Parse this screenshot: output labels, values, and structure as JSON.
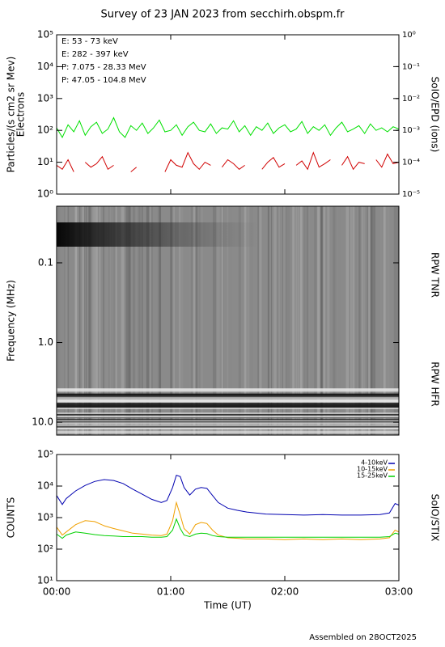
{
  "title": "Survey of 23 JAN 2023 from secchirh.obspm.fr",
  "footer": "Assembled on 28OCT2025",
  "chart_data": [
    {
      "type": "line",
      "ylabel": "Particles/(s cm2 sr Mev)",
      "sublabel": "Electrons",
      "y2label": "SoIO/EPD (ions)",
      "ylog": true,
      "ylim": [
        1,
        100000
      ],
      "yticks": [
        {
          "value": 1,
          "label": "10⁰"
        },
        {
          "value": 10,
          "label": "10¹"
        },
        {
          "value": 100,
          "label": "10²"
        },
        {
          "value": 1000,
          "label": "10³"
        },
        {
          "value": 10000,
          "label": "10⁴"
        },
        {
          "value": 100000,
          "label": "10⁵"
        }
      ],
      "y2lim": [
        1e-05,
        1
      ],
      "y2ticks": [
        {
          "value": 1e-05,
          "label": "10⁻⁵"
        },
        {
          "value": 0.0001,
          "label": "10⁻⁴"
        },
        {
          "value": 0.001,
          "label": "10⁻³"
        },
        {
          "value": 0.01,
          "label": "10⁻²"
        },
        {
          "value": 0.1,
          "label": "10⁻¹"
        },
        {
          "value": 1,
          "label": "10⁰"
        }
      ],
      "xlim": [
        0,
        180
      ],
      "x": [
        0,
        3,
        6,
        9,
        12,
        15,
        18,
        21,
        24,
        27,
        30,
        33,
        36,
        39,
        42,
        45,
        48,
        51,
        54,
        57,
        60,
        63,
        66,
        69,
        72,
        75,
        78,
        81,
        84,
        87,
        90,
        93,
        96,
        99,
        102,
        105,
        108,
        111,
        114,
        117,
        120,
        123,
        126,
        129,
        132,
        135,
        138,
        141,
        144,
        147,
        150,
        153,
        156,
        159,
        162,
        165,
        168,
        171,
        174,
        177,
        180
      ],
      "series": [
        {
          "name": "E: 53 - 73 keV",
          "color": "#00e000",
          "values": [
            120,
            60,
            150,
            90,
            200,
            70,
            130,
            180,
            80,
            110,
            250,
            90,
            60,
            140,
            100,
            170,
            80,
            120,
            210,
            90,
            100,
            150,
            70,
            130,
            180,
            100,
            90,
            160,
            80,
            120,
            110,
            200,
            90,
            140,
            70,
            130,
            100,
            170,
            80,
            120,
            150,
            90,
            110,
            190,
            80,
            130,
            100,
            150,
            70,
            120,
            180,
            90,
            110,
            140,
            80,
            160,
            100,
            120,
            90,
            130,
            110
          ]
        },
        {
          "name": "E: 282 - 397 keV",
          "color": "#d00000",
          "values": [
            8,
            6,
            12,
            5,
            null,
            10,
            7,
            9,
            15,
            6,
            8,
            null,
            null,
            5,
            7,
            null,
            6,
            null,
            null,
            5,
            12,
            8,
            7,
            20,
            9,
            6,
            10,
            8,
            null,
            7,
            12,
            9,
            6,
            8,
            null,
            null,
            6,
            10,
            14,
            7,
            9,
            null,
            8,
            11,
            6,
            20,
            7,
            9,
            12,
            null,
            8,
            15,
            6,
            10,
            9,
            null,
            12,
            7,
            18,
            9,
            10
          ]
        },
        {
          "name": "P: 7.075 - 28.33 MeV",
          "color": "#000000"
        },
        {
          "name": "P: 47.05 - 104.8 MeV",
          "color": "#0000c0"
        }
      ]
    },
    {
      "type": "spectrogram",
      "ylabel": "Frequency (MHz)",
      "labels": [
        "RPW TNR",
        "RPW HFR"
      ],
      "ylog": true,
      "yinverted": true,
      "ylim": [
        0.0195,
        14.5
      ],
      "yticks": [
        0.1,
        {
          "value": 1,
          "label": "1.0"
        },
        {
          "value": 10,
          "label": "10.0"
        }
      ]
    },
    {
      "type": "line",
      "ylabel": "COUNTS",
      "y2label": "SoIO/STIX",
      "xlabel": "Time (UT)",
      "ylog": true,
      "ylim": [
        10,
        100000
      ],
      "yticks": [
        {
          "value": 10,
          "label": "10¹"
        },
        {
          "value": 100,
          "label": "10²"
        },
        {
          "value": 1000,
          "label": "10³"
        },
        {
          "value": 10000,
          "label": "10⁴"
        },
        {
          "value": 100000,
          "label": "10⁵"
        }
      ],
      "xlim": [
        0,
        180
      ],
      "xticks": [
        {
          "value": 0,
          "label": "00:00"
        },
        {
          "value": 60,
          "label": "01:00"
        },
        {
          "value": 120,
          "label": "02:00"
        },
        {
          "value": 180,
          "label": "03:00"
        }
      ],
      "x": [
        0,
        3,
        5,
        10,
        15,
        20,
        25,
        30,
        35,
        40,
        45,
        50,
        55,
        58,
        61,
        63,
        65,
        67,
        70,
        73,
        76,
        79,
        82,
        85,
        90,
        95,
        100,
        110,
        120,
        130,
        140,
        150,
        160,
        170,
        175,
        178,
        180
      ],
      "series": [
        {
          "name": "4-10keV",
          "color": "#0000b0",
          "values": [
            5000,
            2600,
            4000,
            7000,
            10500,
            14000,
            16000,
            15000,
            12000,
            8000,
            5500,
            3800,
            3000,
            3500,
            9000,
            22000,
            20000,
            9000,
            5200,
            8000,
            9000,
            8500,
            5000,
            3000,
            2000,
            1700,
            1500,
            1300,
            1250,
            1200,
            1250,
            1200,
            1200,
            1250,
            1400,
            2800,
            2500
          ]
        },
        {
          "name": "10-15keV",
          "color": "#f0a000",
          "values": [
            500,
            280,
            350,
            600,
            800,
            750,
            550,
            450,
            380,
            320,
            300,
            280,
            270,
            300,
            800,
            3000,
            1200,
            450,
            300,
            600,
            700,
            650,
            400,
            280,
            230,
            220,
            210,
            210,
            200,
            210,
            200,
            210,
            200,
            210,
            230,
            400,
            350
          ]
        },
        {
          "name": "15-25keV",
          "color": "#00d000",
          "values": [
            300,
            220,
            280,
            350,
            320,
            290,
            270,
            260,
            250,
            250,
            250,
            240,
            240,
            250,
            400,
            900,
            450,
            280,
            250,
            300,
            320,
            310,
            270,
            250,
            240,
            240,
            240,
            240,
            240,
            240,
            240,
            240,
            240,
            240,
            250,
            320,
            300
          ]
        }
      ]
    }
  ]
}
